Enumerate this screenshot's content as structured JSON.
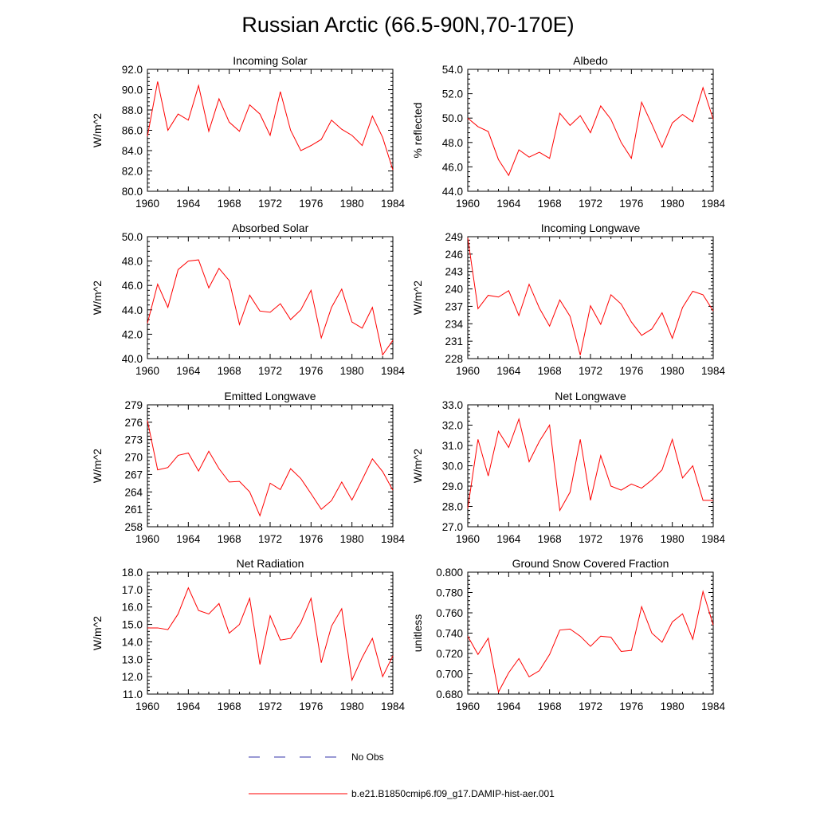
{
  "title": "Russian Arctic (66.5-90N,70-170E)",
  "legend": [
    {
      "label": "No Obs",
      "color": "#3333aa",
      "style": "dashed"
    },
    {
      "label": "b.e21.B1850cmip6.f09_g17.DAMIP-hist-aer.001",
      "color": "#ff0000",
      "style": "solid"
    }
  ],
  "chart_data": [
    {
      "type": "line",
      "title": "Incoming Solar",
      "ylabel": "W/m^2",
      "xlim": [
        1960,
        1984
      ],
      "ylim": [
        80.0,
        92.0
      ],
      "xticks": [
        1960,
        1964,
        1968,
        1972,
        1976,
        1980,
        1984
      ],
      "yticks": [
        "80.0",
        "82.0",
        "84.0",
        "86.0",
        "88.0",
        "90.0",
        "92.0"
      ],
      "series": [
        {
          "color": "#ff0000",
          "x": [
            1960,
            1961,
            1962,
            1963,
            1964,
            1965,
            1966,
            1967,
            1968,
            1969,
            1970,
            1971,
            1972,
            1973,
            1974,
            1975,
            1976,
            1977,
            1978,
            1979,
            1980,
            1981,
            1982,
            1983,
            1984
          ],
          "values": [
            85.4,
            90.8,
            86.0,
            87.6,
            87.0,
            90.4,
            85.9,
            89.1,
            86.8,
            85.9,
            88.5,
            87.6,
            85.5,
            89.8,
            86.0,
            84.0,
            84.5,
            85.1,
            87.0,
            86.1,
            85.5,
            84.5,
            87.4,
            85.3,
            82.1
          ]
        }
      ]
    },
    {
      "type": "line",
      "title": "Albedo",
      "ylabel": "% reflected",
      "xlim": [
        1960,
        1984
      ],
      "ylim": [
        44.0,
        54.0
      ],
      "xticks": [
        1960,
        1964,
        1968,
        1972,
        1976,
        1980,
        1984
      ],
      "yticks": [
        "44.0",
        "46.0",
        "48.0",
        "50.0",
        "52.0",
        "54.0"
      ],
      "series": [
        {
          "color": "#ff0000",
          "x": [
            1960,
            1961,
            1962,
            1963,
            1964,
            1965,
            1966,
            1967,
            1968,
            1969,
            1970,
            1971,
            1972,
            1973,
            1974,
            1975,
            1976,
            1977,
            1978,
            1979,
            1980,
            1981,
            1982,
            1983,
            1984
          ],
          "values": [
            50.0,
            49.3,
            48.9,
            46.6,
            45.3,
            47.4,
            46.8,
            47.2,
            46.7,
            50.4,
            49.4,
            50.2,
            48.8,
            51.0,
            49.9,
            48.0,
            46.7,
            51.3,
            49.5,
            47.6,
            49.6,
            50.3,
            49.7,
            52.5,
            49.9
          ]
        }
      ]
    },
    {
      "type": "line",
      "title": "Absorbed Solar",
      "ylabel": "W/m^2",
      "xlim": [
        1960,
        1984
      ],
      "ylim": [
        40.0,
        50.0
      ],
      "xticks": [
        1960,
        1964,
        1968,
        1972,
        1976,
        1980,
        1984
      ],
      "yticks": [
        "40.0",
        "42.0",
        "44.0",
        "46.0",
        "48.0",
        "50.0"
      ],
      "series": [
        {
          "color": "#ff0000",
          "x": [
            1960,
            1961,
            1962,
            1963,
            1964,
            1965,
            1966,
            1967,
            1968,
            1969,
            1970,
            1971,
            1972,
            1973,
            1974,
            1975,
            1976,
            1977,
            1978,
            1979,
            1980,
            1981,
            1982,
            1983,
            1984
          ],
          "values": [
            42.9,
            46.1,
            44.2,
            47.3,
            48.0,
            48.1,
            45.8,
            47.4,
            46.4,
            42.8,
            45.2,
            43.9,
            43.8,
            44.5,
            43.2,
            44.0,
            45.6,
            41.7,
            44.2,
            45.7,
            43.0,
            42.5,
            44.2,
            40.3,
            41.5
          ]
        }
      ]
    },
    {
      "type": "line",
      "title": "Incoming Longwave",
      "ylabel": "W/m^2",
      "xlim": [
        1960,
        1984
      ],
      "ylim": [
        228,
        249
      ],
      "xticks": [
        1960,
        1964,
        1968,
        1972,
        1976,
        1980,
        1984
      ],
      "yticks": [
        "228",
        "231",
        "234",
        "237",
        "240",
        "243",
        "246",
        "249"
      ],
      "series": [
        {
          "color": "#ff0000",
          "x": [
            1960,
            1961,
            1962,
            1963,
            1964,
            1965,
            1966,
            1967,
            1968,
            1969,
            1970,
            1971,
            1972,
            1973,
            1974,
            1975,
            1976,
            1977,
            1978,
            1979,
            1980,
            1981,
            1982,
            1983,
            1984
          ],
          "values": [
            248.8,
            236.6,
            238.9,
            238.6,
            239.7,
            235.4,
            240.8,
            236.7,
            233.6,
            238.1,
            235.3,
            228.6,
            237.1,
            233.9,
            239.0,
            237.4,
            234.3,
            232.0,
            233.1,
            235.9,
            231.5,
            236.8,
            239.6,
            239.0,
            236.2
          ]
        }
      ]
    },
    {
      "type": "line",
      "title": "Emitted Longwave",
      "ylabel": "W/m^2",
      "xlim": [
        1960,
        1984
      ],
      "ylim": [
        258,
        279
      ],
      "xticks": [
        1960,
        1964,
        1968,
        1972,
        1976,
        1980,
        1984
      ],
      "yticks": [
        "258",
        "261",
        "264",
        "267",
        "270",
        "273",
        "276",
        "279"
      ],
      "series": [
        {
          "color": "#ff0000",
          "x": [
            1960,
            1961,
            1962,
            1963,
            1964,
            1965,
            1966,
            1967,
            1968,
            1969,
            1970,
            1971,
            1972,
            1973,
            1974,
            1975,
            1976,
            1977,
            1978,
            1979,
            1980,
            1981,
            1982,
            1983,
            1984
          ],
          "values": [
            276.3,
            267.8,
            268.2,
            270.3,
            270.7,
            267.6,
            271.0,
            268.0,
            265.7,
            265.8,
            264.0,
            259.9,
            265.5,
            264.4,
            268.0,
            266.3,
            263.7,
            261.0,
            262.5,
            265.7,
            262.6,
            266.1,
            269.7,
            267.5,
            264.3
          ]
        }
      ]
    },
    {
      "type": "line",
      "title": "Net Longwave",
      "ylabel": "W/m^2",
      "xlim": [
        1960,
        1984
      ],
      "ylim": [
        27.0,
        33.0
      ],
      "xticks": [
        1960,
        1964,
        1968,
        1972,
        1976,
        1980,
        1984
      ],
      "yticks": [
        "27.0",
        "28.0",
        "29.0",
        "30.0",
        "31.0",
        "32.0",
        "33.0"
      ],
      "series": [
        {
          "color": "#ff0000",
          "x": [
            1960,
            1961,
            1962,
            1963,
            1964,
            1965,
            1966,
            1967,
            1968,
            1969,
            1970,
            1971,
            1972,
            1973,
            1974,
            1975,
            1976,
            1977,
            1978,
            1979,
            1980,
            1981,
            1982,
            1983,
            1984
          ],
          "values": [
            27.9,
            31.3,
            29.5,
            31.7,
            30.9,
            32.3,
            30.2,
            31.2,
            32.0,
            27.8,
            28.7,
            31.3,
            28.3,
            30.5,
            29.0,
            28.8,
            29.1,
            28.9,
            29.3,
            29.8,
            31.3,
            29.4,
            30.0,
            28.3,
            28.3
          ]
        }
      ]
    },
    {
      "type": "line",
      "title": "Net Radiation",
      "ylabel": "W/m^2",
      "xlim": [
        1960,
        1984
      ],
      "ylim": [
        11.0,
        18.0
      ],
      "xticks": [
        1960,
        1964,
        1968,
        1972,
        1976,
        1980,
        1984
      ],
      "yticks": [
        "11.0",
        "12.0",
        "13.0",
        "14.0",
        "15.0",
        "16.0",
        "17.0",
        "18.0"
      ],
      "series": [
        {
          "color": "#ff0000",
          "x": [
            1960,
            1961,
            1962,
            1963,
            1964,
            1965,
            1966,
            1967,
            1968,
            1969,
            1970,
            1971,
            1972,
            1973,
            1974,
            1975,
            1976,
            1977,
            1978,
            1979,
            1980,
            1981,
            1982,
            1983,
            1984
          ],
          "values": [
            14.8,
            14.8,
            14.7,
            15.6,
            17.1,
            15.8,
            15.6,
            16.2,
            14.5,
            15.0,
            16.5,
            12.7,
            15.5,
            14.1,
            14.2,
            15.1,
            16.5,
            12.8,
            14.9,
            15.9,
            11.8,
            13.1,
            14.2,
            12.0,
            13.2
          ]
        }
      ]
    },
    {
      "type": "line",
      "title": "Ground Snow Covered Fraction",
      "ylabel": "unitless",
      "xlim": [
        1960,
        1984
      ],
      "ylim": [
        0.68,
        0.8
      ],
      "xticks": [
        1960,
        1964,
        1968,
        1972,
        1976,
        1980,
        1984
      ],
      "yticks": [
        "0.680",
        "0.700",
        "0.720",
        "0.740",
        "0.760",
        "0.780",
        "0.800"
      ],
      "series": [
        {
          "color": "#ff0000",
          "x": [
            1960,
            1961,
            1962,
            1963,
            1964,
            1965,
            1966,
            1967,
            1968,
            1969,
            1970,
            1971,
            1972,
            1973,
            1974,
            1975,
            1976,
            1977,
            1978,
            1979,
            1980,
            1981,
            1982,
            1983,
            1984
          ],
          "values": [
            0.737,
            0.719,
            0.735,
            0.682,
            0.701,
            0.715,
            0.697,
            0.703,
            0.719,
            0.743,
            0.744,
            0.737,
            0.727,
            0.737,
            0.736,
            0.722,
            0.723,
            0.766,
            0.74,
            0.731,
            0.751,
            0.759,
            0.734,
            0.781,
            0.748
          ]
        }
      ]
    }
  ]
}
